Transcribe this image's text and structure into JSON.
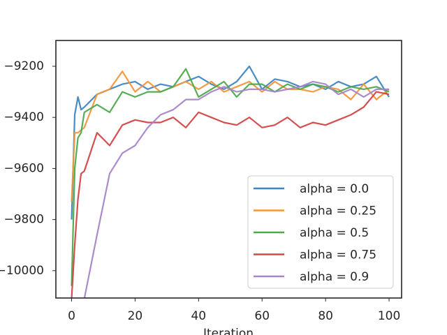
{
  "chart_data": {
    "type": "line",
    "x_label": "Iteration",
    "x": [
      0,
      1,
      2,
      3,
      4,
      8,
      12,
      16,
      20,
      24,
      28,
      32,
      36,
      40,
      44,
      48,
      52,
      56,
      60,
      64,
      68,
      72,
      76,
      80,
      84,
      88,
      92,
      96,
      100
    ],
    "series": [
      {
        "name": "alpha = 0.0",
        "color": "#3f86c0",
        "values": [
          -9800,
          -9390,
          -9320,
          -9370,
          -9360,
          -9310,
          -9290,
          -9270,
          -9260,
          -9290,
          -9270,
          -9280,
          -9260,
          -9240,
          -9270,
          -9290,
          -9260,
          -9200,
          -9290,
          -9250,
          -9260,
          -9280,
          -9270,
          -9290,
          -9260,
          -9280,
          -9270,
          -9240,
          -9320
        ]
      },
      {
        "name": "alpha = 0.25",
        "color": "#f2963a",
        "values": [
          -9730,
          -9460,
          -9460,
          -9450,
          -9440,
          -9310,
          -9290,
          -9220,
          -9300,
          -9260,
          -9300,
          -9280,
          -9260,
          -9290,
          -9260,
          -9300,
          -9280,
          -9260,
          -9300,
          -9260,
          -9290,
          -9290,
          -9300,
          -9280,
          -9290,
          -9330,
          -9270,
          -9330,
          -9290
        ]
      },
      {
        "name": "alpha = 0.5",
        "color": "#4caa4c",
        "values": [
          -10060,
          -9600,
          -9480,
          -9460,
          -9380,
          -9350,
          -9380,
          -9300,
          -9320,
          -9300,
          -9300,
          -9280,
          -9210,
          -9320,
          -9290,
          -9260,
          -9320,
          -9270,
          -9270,
          -9300,
          -9270,
          -9290,
          -9270,
          -9280,
          -9300,
          -9280,
          -9290,
          -9280,
          -9300
        ]
      },
      {
        "name": "alpha = 0.75",
        "color": "#d34646",
        "values": [
          -10110,
          -9900,
          -9720,
          -9620,
          -9610,
          -9460,
          -9510,
          -9430,
          -9410,
          -9420,
          -9420,
          -9400,
          -9440,
          -9380,
          -9400,
          -9420,
          -9430,
          -9400,
          -9440,
          -9430,
          -9400,
          -9440,
          -9420,
          -9430,
          -9410,
          -9390,
          -9360,
          -9300,
          -9310
        ]
      },
      {
        "name": "alpha = 0.9",
        "color": "#a785c9",
        "values": [
          null,
          null,
          null,
          null,
          -10110,
          -9860,
          -9620,
          -9540,
          -9510,
          -9440,
          -9390,
          -9370,
          -9330,
          -9330,
          -9300,
          -9280,
          -9300,
          -9290,
          -9290,
          -9300,
          -9290,
          -9280,
          -9260,
          -9270,
          -9310,
          -9290,
          -9320,
          -9290,
          -9290
        ]
      }
    ],
    "xlim": [
      -4.95,
      103.95
    ],
    "ylim": [
      -10107,
      -9099
    ],
    "xticks": [
      0,
      20,
      40,
      60,
      80,
      100
    ],
    "yticks": [
      {
        "value": -10000,
        "label": "−10000"
      },
      {
        "value": -9800,
        "label": "−9800"
      },
      {
        "value": -9600,
        "label": "−9600"
      },
      {
        "value": -9400,
        "label": "−9400"
      },
      {
        "value": -9200,
        "label": "−9200"
      }
    ],
    "legend": "lower right"
  }
}
